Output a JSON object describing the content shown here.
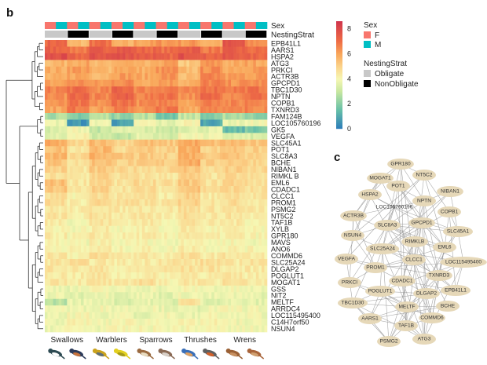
{
  "panel_labels": {
    "heatmap": "b",
    "network": "c"
  },
  "chart_data": [
    {
      "type": "heatmap",
      "row_labels": [
        "EPB41L1",
        "AARS1",
        "HSPA2",
        "ATG3",
        "PRKCI",
        "ACTR3B",
        "GPCPD1",
        "TBC1D30",
        "NPTN",
        "COPB1",
        "TXNRD3",
        "FAM124B",
        "LOC105760196",
        "GK5",
        "VEGFA",
        "SLC45A1",
        "POT1",
        "SLC8A3",
        "BCHE",
        "NIBAN1",
        "RIMKL B",
        "EML6",
        "CDADC1",
        "CLCC1",
        "PROM1",
        "PSMG2",
        "NT5C2",
        "TAF1B",
        "XYLB",
        "GPR180",
        "MAVS",
        "ANO6",
        "COMMD6",
        "SLC25A24",
        "DLGAP2",
        "POGLUT1",
        "MOGAT1",
        "GSS",
        "NIT2",
        "MELTF",
        "ARRDC4",
        "LOC115495400",
        "C14H7orf50",
        "NSUN4"
      ],
      "annotation_labels": {
        "sex": "Sex",
        "nesting": "NestingStrat"
      },
      "column_species_nesting": [
        "Obligate",
        "NonObligate",
        "Obligate",
        "NonObligate",
        "Obligate",
        "NonObligate",
        "Obligate",
        "NonObligate",
        "Obligate",
        "NonObligate"
      ],
      "column_sex_per_species": [
        "F",
        "M"
      ],
      "groups": [
        "Swallows",
        "Warblers",
        "Sparrows",
        "Thrushes",
        "Wrens"
      ],
      "values": [
        [
          7.2,
          5.5,
          7.0,
          5.6,
          6.0,
          6.3,
          6.2,
          5.8,
          7.6,
          6.4
        ],
        [
          7.3,
          6.8,
          7.4,
          7.6,
          7.2,
          7.0,
          7.5,
          6.8,
          7.3,
          7.0
        ],
        [
          7.8,
          7.2,
          7.7,
          7.8,
          7.5,
          7.2,
          7.8,
          7.3,
          7.5,
          7.2
        ],
        [
          5.6,
          6.0,
          5.4,
          5.8,
          5.5,
          6.0,
          5.2,
          6.2,
          5.8,
          6.0
        ],
        [
          5.8,
          6.2,
          5.6,
          6.0,
          5.8,
          6.3,
          5.5,
          6.4,
          6.0,
          6.2
        ],
        [
          5.6,
          6.0,
          5.7,
          6.2,
          5.9,
          6.3,
          5.4,
          6.5,
          6.1,
          6.2
        ],
        [
          6.0,
          6.4,
          6.1,
          6.5,
          6.0,
          6.2,
          5.8,
          6.6,
          6.3,
          6.4
        ],
        [
          6.6,
          7.0,
          6.5,
          7.2,
          6.6,
          6.8,
          6.4,
          7.0,
          6.8,
          6.9
        ],
        [
          6.4,
          7.2,
          6.5,
          7.3,
          6.6,
          7.0,
          6.4,
          7.1,
          6.6,
          7.0
        ],
        [
          6.2,
          6.8,
          6.3,
          7.0,
          6.4,
          6.7,
          6.1,
          6.8,
          6.5,
          6.7
        ],
        [
          6.0,
          6.8,
          6.1,
          6.6,
          6.3,
          6.8,
          6.0,
          6.7,
          6.4,
          6.6
        ],
        [
          2.6,
          2.0,
          2.8,
          2.3,
          2.8,
          1.8,
          3.0,
          1.9,
          2.7,
          2.2
        ],
        [
          3.8,
          0.6,
          3.9,
          0.8,
          4.0,
          3.6,
          4.1,
          1.0,
          3.8,
          3.9
        ],
        [
          3.4,
          4.0,
          3.0,
          3.5,
          3.4,
          3.2,
          3.6,
          3.6,
          1.4,
          1.8
        ],
        [
          3.4,
          4.2,
          3.2,
          3.0,
          3.6,
          3.3,
          4.0,
          3.8,
          3.5,
          3.4
        ],
        [
          5.8,
          4.8,
          5.6,
          5.0,
          5.4,
          5.2,
          5.9,
          5.4,
          5.5,
          5.2
        ],
        [
          5.4,
          4.6,
          5.6,
          4.8,
          5.2,
          5.0,
          5.8,
          5.0,
          5.3,
          5.0
        ],
        [
          5.6,
          4.8,
          5.7,
          5.2,
          5.1,
          5.0,
          5.8,
          5.3,
          5.4,
          5.1
        ],
        [
          5.3,
          4.6,
          5.4,
          5.0,
          5.0,
          5.1,
          5.9,
          5.0,
          5.2,
          5.0
        ],
        [
          5.0,
          4.5,
          5.1,
          4.8,
          4.8,
          4.9,
          5.3,
          4.7,
          5.0,
          4.8
        ],
        [
          4.6,
          4.4,
          5.0,
          4.6,
          4.6,
          4.5,
          5.0,
          4.5,
          4.8,
          4.6
        ],
        [
          5.4,
          4.5,
          5.0,
          4.5,
          4.8,
          4.6,
          5.2,
          4.6,
          5.0,
          4.7
        ],
        [
          5.3,
          4.4,
          5.0,
          4.6,
          4.7,
          4.5,
          5.4,
          4.8,
          4.9,
          4.6
        ],
        [
          4.6,
          4.2,
          4.8,
          4.4,
          4.6,
          4.3,
          5.0,
          4.4,
          4.8,
          4.5
        ],
        [
          4.8,
          4.3,
          4.9,
          4.6,
          4.6,
          4.5,
          5.0,
          4.6,
          4.7,
          4.5
        ],
        [
          4.4,
          4.3,
          4.6,
          4.4,
          4.5,
          4.4,
          4.7,
          4.5,
          4.6,
          4.4
        ],
        [
          4.5,
          4.2,
          4.6,
          4.4,
          4.4,
          4.3,
          4.8,
          4.4,
          4.5,
          4.3
        ],
        [
          4.4,
          4.0,
          4.5,
          4.3,
          4.4,
          4.2,
          4.6,
          4.3,
          4.4,
          4.2
        ],
        [
          4.2,
          4.0,
          4.3,
          4.1,
          4.2,
          4.0,
          4.4,
          4.1,
          4.2,
          4.0
        ],
        [
          4.3,
          4.1,
          4.4,
          4.2,
          4.3,
          4.1,
          4.5,
          4.2,
          4.3,
          4.1
        ],
        [
          4.1,
          3.9,
          4.2,
          4.0,
          4.1,
          3.9,
          4.3,
          4.0,
          4.1,
          3.9
        ],
        [
          4.2,
          4.1,
          4.3,
          4.1,
          4.2,
          4.0,
          4.4,
          4.1,
          4.2,
          4.1
        ],
        [
          4.6,
          4.2,
          4.7,
          4.4,
          4.5,
          4.3,
          4.6,
          4.4,
          4.5,
          4.3
        ],
        [
          4.5,
          4.6,
          4.4,
          4.3,
          4.4,
          4.6,
          4.5,
          4.7,
          4.4,
          4.6
        ],
        [
          4.6,
          4.4,
          4.5,
          4.2,
          4.4,
          4.5,
          4.6,
          4.6,
          4.3,
          4.4
        ],
        [
          4.4,
          4.3,
          4.5,
          4.2,
          4.3,
          4.2,
          4.5,
          4.3,
          4.4,
          4.3
        ],
        [
          4.6,
          4.4,
          4.5,
          4.3,
          4.8,
          4.2,
          4.5,
          4.3,
          4.8,
          4.4
        ],
        [
          3.9,
          3.8,
          4.0,
          3.8,
          3.9,
          3.8,
          4.0,
          3.9,
          3.9,
          3.8
        ],
        [
          3.8,
          3.6,
          3.9,
          3.7,
          3.8,
          3.6,
          3.9,
          3.7,
          3.8,
          3.7
        ],
        [
          2.8,
          3.7,
          3.8,
          3.5,
          3.7,
          3.5,
          4.6,
          3.6,
          3.7,
          3.6
        ],
        [
          4.0,
          3.8,
          4.0,
          3.9,
          4.0,
          3.8,
          3.6,
          3.9,
          4.0,
          3.9
        ],
        [
          3.7,
          4.0,
          3.7,
          4.0,
          3.7,
          4.0,
          3.7,
          4.0,
          3.8,
          3.9
        ],
        [
          3.9,
          4.1,
          3.9,
          4.1,
          4.0,
          4.1,
          4.0,
          4.1,
          3.9,
          3.8
        ],
        [
          3.9,
          4.0,
          3.9,
          4.0,
          4.0,
          4.0,
          4.0,
          4.0,
          3.9,
          3.9
        ]
      ],
      "colorbar": {
        "range": [
          0,
          8.6
        ],
        "ticks": [
          0,
          2,
          4,
          6,
          8
        ],
        "palette": "Spectral (reversed)"
      },
      "legend": {
        "sex_title": "Sex",
        "sex_items": [
          {
            "label": "F",
            "color": "#f8766d"
          },
          {
            "label": "M",
            "color": "#00bfc4"
          }
        ],
        "nesting_title": "NestingStrat",
        "nesting_items": [
          {
            "label": "Obligate",
            "color": "#c8c8c8"
          },
          {
            "label": "NonObligate",
            "color": "#000000"
          }
        ]
      },
      "dendrogram": true
    },
    {
      "type": "network",
      "node_color": "#e6d8b8",
      "edge_color": "#9a9a9a",
      "nodes": [
        "GPR180",
        "NT5C2",
        "MOGAT1",
        "POT1",
        "NIBAN1",
        "HSPA2",
        "NPTN",
        "LOC105760196",
        "COPB1",
        "ACTR3B",
        "GPCPD1",
        "SLC8A3",
        "SLC45A1",
        "NSUN4",
        "RIMKLB",
        "EML6",
        "SLC25A24",
        "VEGFA",
        "CLCC1",
        "LOC115495400",
        "PROM1",
        "TXNRD3",
        "PRKCI",
        "CDADC1",
        "EPB41L1",
        "POGLUT1",
        "DLGAP2",
        "TBC1D30",
        "MELTF",
        "BCHE",
        "AARS1",
        "COMMD6",
        "TAF1B",
        "ATG3",
        "PSMG2"
      ]
    }
  ]
}
